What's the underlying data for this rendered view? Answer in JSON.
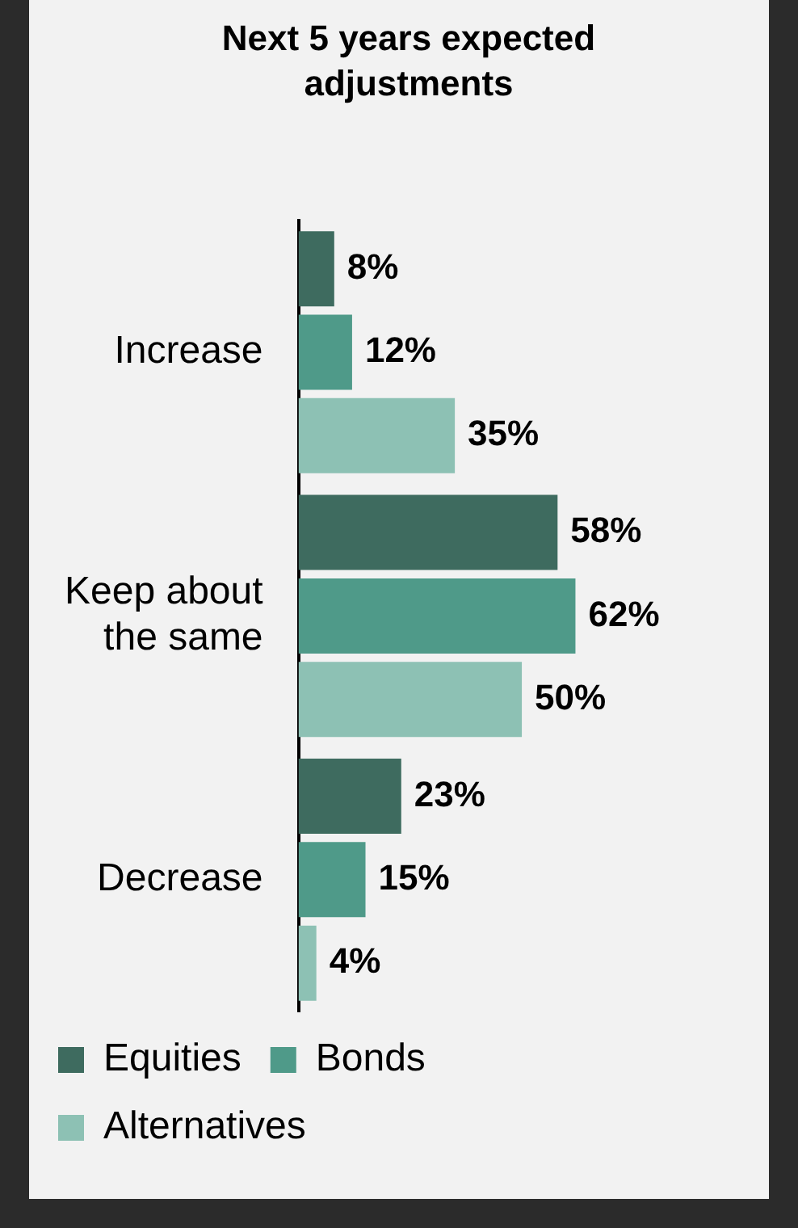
{
  "chart_data": {
    "type": "bar",
    "orientation": "horizontal",
    "title": "Next 5 years expected adjustments",
    "categories": [
      "Increase",
      "Keep about the same",
      "Decrease"
    ],
    "series": [
      {
        "name": "Equities",
        "color": "#3e6b5f",
        "values": [
          8,
          58,
          23
        ],
        "value_labels": [
          "8%",
          "58%",
          "23%"
        ]
      },
      {
        "name": "Bonds",
        "color": "#4f9a89",
        "values": [
          12,
          62,
          15
        ],
        "value_labels": [
          "12%",
          "62%",
          "15%"
        ]
      },
      {
        "name": "Alternatives",
        "color": "#8dc1b4",
        "values": [
          35,
          50,
          4
        ],
        "value_labels": [
          "35%",
          "50%",
          "4%"
        ]
      }
    ],
    "grid": false,
    "legend": "bottom"
  }
}
